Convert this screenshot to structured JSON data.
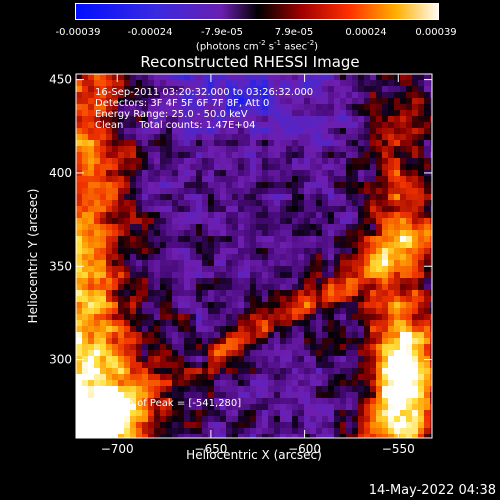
{
  "colorbar": {
    "ticks": [
      "-0.00039",
      "-0.00024",
      "-7.9e-05",
      "7.9e-05",
      "0.00024",
      "0.00039"
    ],
    "units_prefix": "(photons cm",
    "units_sup1": "-2",
    "units_mid": " s",
    "units_sup2": "-1",
    "units_mid2": " asec",
    "units_sup3": "-2",
    "units_suffix": ")"
  },
  "chart_data": {
    "type": "heatmap",
    "title": "Reconstructed RHESSI Image",
    "xlabel": "Heliocentric X (arcsec)",
    "ylabel": "Heliocentric Y (arcsec)",
    "xlim": [
      -722,
      -532
    ],
    "ylim": [
      258,
      453
    ],
    "xticks": [
      -700,
      -650,
      -600,
      -550
    ],
    "yticks": [
      300,
      350,
      400,
      450
    ],
    "colorscale": "rainbow-blue-purple-red-yellow-white",
    "clim": [
      -0.00039,
      0.00039
    ]
  },
  "annotations": {
    "time_range": "16-Sep-2011 03:20:32.000 to 03:26:32.000",
    "detectors": "Detectors: 3F 4F 5F 6F 7F 8F, Att 0",
    "energy": "Energy Range: 25.0 - 50.0 keV",
    "clean": "Clean     Total counts: 1.47E+04",
    "position": "Position of Peak = [-541,280]"
  },
  "footer": "14-May-2022 04:38"
}
